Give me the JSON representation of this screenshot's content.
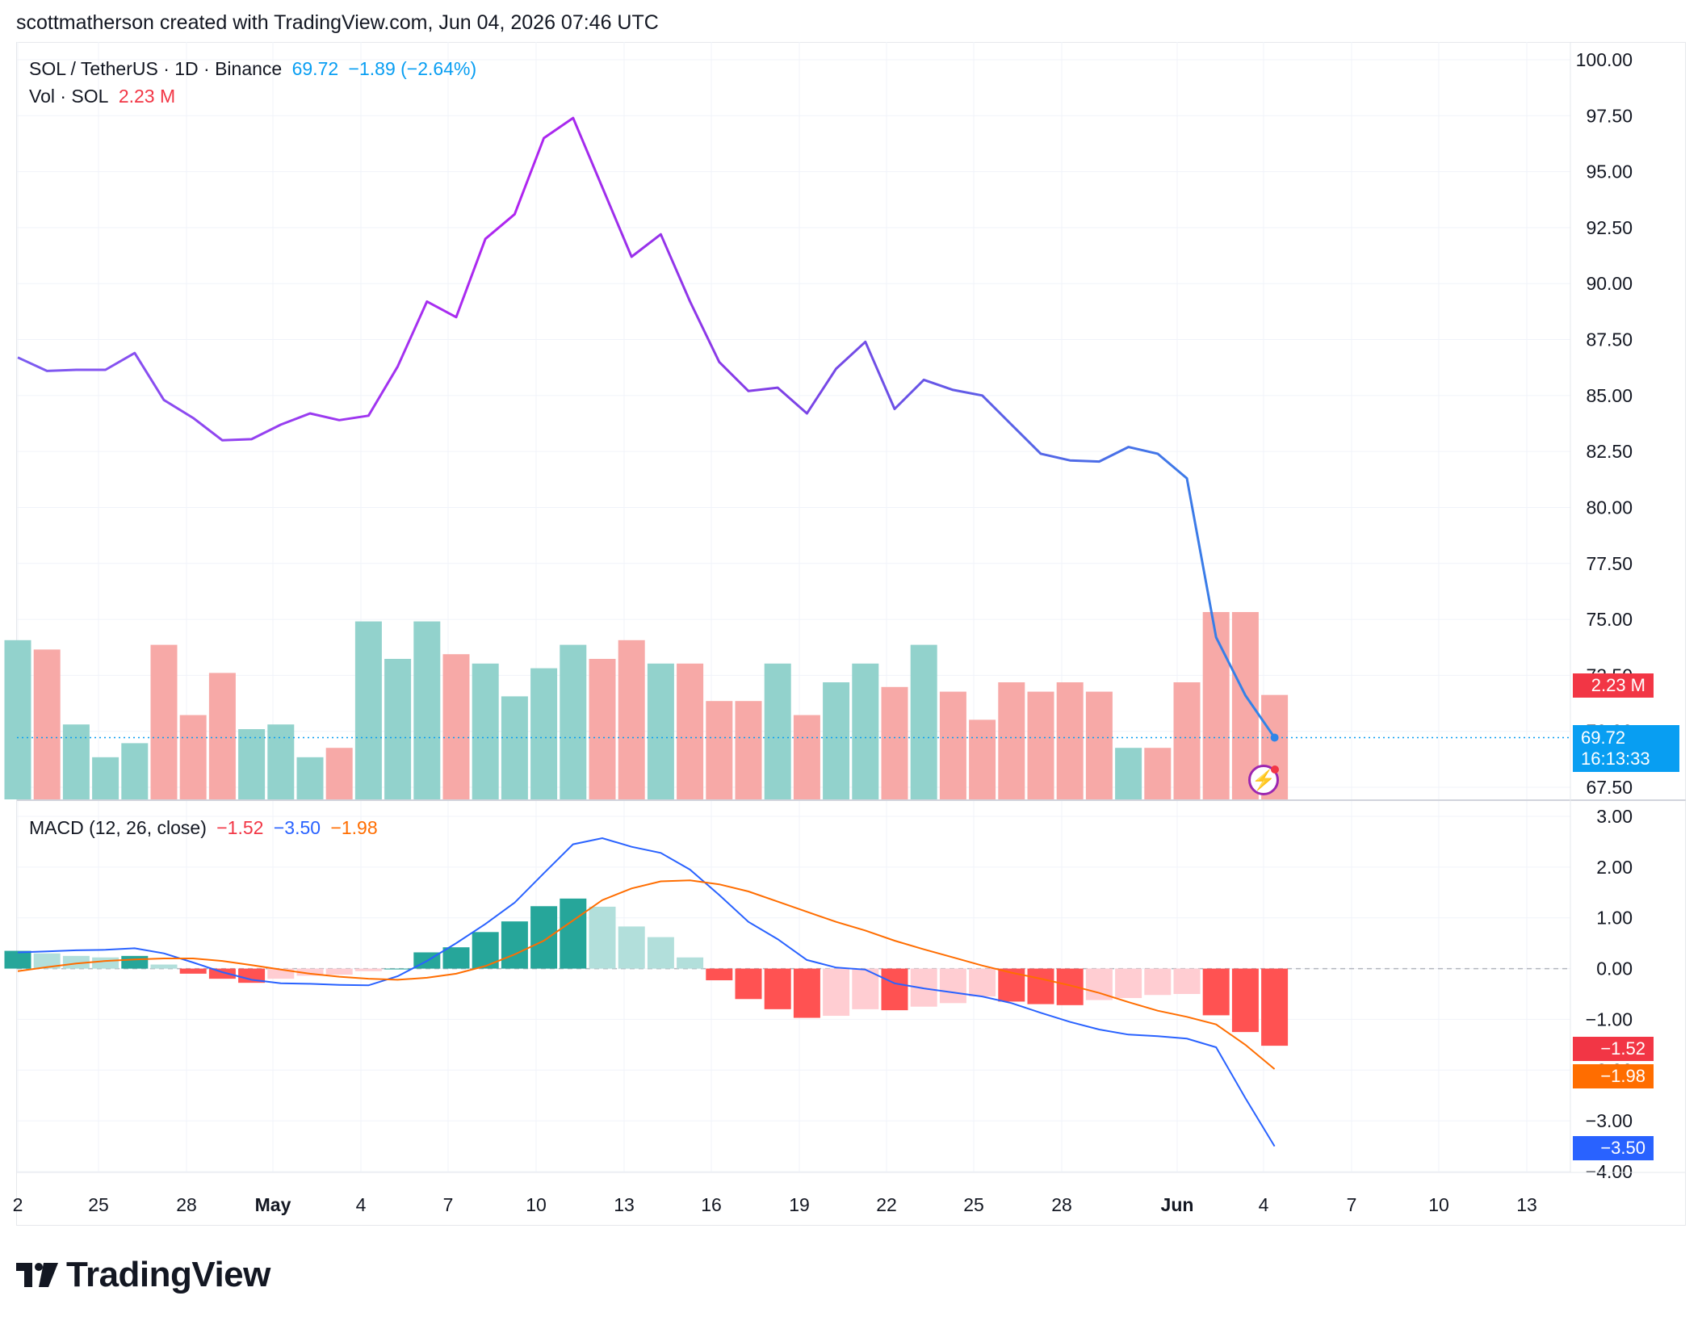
{
  "header": {
    "text": "scottmatherson created with TradingView.com, Jun 04, 2026 07:46 UTC"
  },
  "legend": {
    "symbol": "SOL / TetherUS · 1D · Binance",
    "price": "69.72",
    "change": "−1.89 (−2.64%)",
    "vol_label": "Vol · SOL",
    "vol_value": "2.23 M",
    "macd_label": "MACD (12, 26, close)",
    "macd_hist": "−1.52",
    "macd_line": "−3.50",
    "macd_signal": "−1.98"
  },
  "badges": {
    "volume": "2.23 M",
    "price": "69.72",
    "countdown": "16:13:33",
    "hist": "−1.52",
    "signal": "−1.98",
    "macd": "−3.50"
  },
  "logo": {
    "text": "TradingView"
  },
  "colors": {
    "up": "#26a69a",
    "down": "#f23645",
    "vol_up": "#92d2cc",
    "vol_down": "#f7a9a7",
    "hist_up_strong": "#26a69a",
    "hist_up_weak": "#b2dfdb",
    "hist_down_strong": "#ff5252",
    "hist_down_weak": "#ffcdd2",
    "macd_line": "#2962ff",
    "signal_line": "#ff6d00",
    "price_badge": "#0ea5e9"
  },
  "chart_data": [
    {
      "type": "line",
      "name": "price",
      "x": [
        "Apr 22",
        "Apr 23",
        "Apr 24",
        "Apr 25",
        "Apr 26",
        "Apr 27",
        "Apr 28",
        "Apr 29",
        "Apr 30",
        "May 1",
        "May 2",
        "May 3",
        "May 4",
        "May 5",
        "May 6",
        "May 7",
        "May 8",
        "May 9",
        "May 10",
        "May 11",
        "May 12",
        "May 13",
        "May 14",
        "May 15",
        "May 16",
        "May 17",
        "May 18",
        "May 19",
        "May 20",
        "May 21",
        "May 22",
        "May 23",
        "May 24",
        "May 25",
        "May 26",
        "May 27",
        "May 28",
        "May 29",
        "May 30",
        "May 31",
        "Jun 1",
        "Jun 2",
        "Jun 3",
        "Jun 4"
      ],
      "values": [
        86.7,
        86.1,
        86.15,
        86.15,
        86.9,
        84.8,
        84.0,
        83.0,
        83.05,
        83.7,
        84.2,
        83.9,
        84.1,
        86.3,
        89.2,
        88.5,
        92.0,
        93.1,
        96.5,
        97.4,
        94.3,
        91.2,
        92.2,
        89.2,
        86.5,
        85.2,
        85.35,
        84.2,
        86.2,
        87.4,
        84.4,
        85.7,
        85.25,
        85.0,
        83.7,
        82.4,
        82.1,
        82.05,
        82.7,
        82.4,
        81.3,
        74.2,
        71.61,
        69.72
      ],
      "ylim": [
        67.5,
        100
      ],
      "yticks": [
        "100.00",
        "97.50",
        "95.00",
        "92.50",
        "90.00",
        "87.50",
        "85.00",
        "82.50",
        "80.00",
        "77.50",
        "75.00",
        "72.50",
        "70.00",
        "67.50"
      ],
      "grid": true
    },
    {
      "type": "bar",
      "name": "volume",
      "values": [
        3.4,
        3.2,
        1.6,
        0.9,
        1.2,
        3.3,
        1.8,
        2.7,
        1.5,
        1.6,
        0.9,
        1.1,
        3.8,
        3.0,
        3.8,
        3.1,
        2.9,
        2.2,
        2.8,
        3.3,
        3.0,
        3.4,
        2.9,
        2.9,
        2.1,
        2.1,
        2.9,
        1.8,
        2.5,
        2.9,
        2.4,
        3.3,
        2.3,
        1.7,
        2.5,
        2.3,
        2.5,
        2.3,
        1.1,
        1.1,
        2.5,
        4.0,
        4.0,
        2.23
      ],
      "direction": [
        "up",
        "down",
        "up",
        "up",
        "up",
        "down",
        "down",
        "down",
        "up",
        "up",
        "up",
        "down",
        "up",
        "up",
        "up",
        "down",
        "up",
        "up",
        "up",
        "up",
        "down",
        "down",
        "up",
        "down",
        "down",
        "down",
        "up",
        "down",
        "up",
        "up",
        "down",
        "up",
        "down",
        "down",
        "down",
        "down",
        "down",
        "down",
        "up",
        "down",
        "down",
        "down",
        "down",
        "down"
      ]
    },
    {
      "type": "bar",
      "name": "macd-histogram",
      "values": [
        0.35,
        0.3,
        0.25,
        0.22,
        0.25,
        0.08,
        -0.1,
        -0.2,
        -0.28,
        -0.2,
        -0.14,
        -0.12,
        -0.05,
        0.0,
        0.32,
        0.42,
        0.72,
        0.93,
        1.23,
        1.38,
        1.22,
        0.83,
        0.62,
        0.22,
        -0.23,
        -0.6,
        -0.8,
        -0.97,
        -0.93,
        -0.8,
        -0.82,
        -0.75,
        -0.68,
        -0.55,
        -0.65,
        -0.7,
        -0.72,
        -0.62,
        -0.58,
        -0.52,
        -0.5,
        -0.92,
        -1.25,
        -1.52
      ],
      "ylim": [
        -4,
        3
      ],
      "yticks": [
        "3.00",
        "2.00",
        "1.00",
        "0.00",
        "−1.00",
        "−2.00",
        "−3.00",
        "−4.00"
      ]
    },
    {
      "type": "line",
      "name": "macd-line",
      "values": [
        0.32,
        0.34,
        0.36,
        0.37,
        0.4,
        0.3,
        0.12,
        -0.07,
        -0.22,
        -0.29,
        -0.3,
        -0.32,
        -0.33,
        -0.15,
        0.15,
        0.5,
        0.88,
        1.3,
        1.88,
        2.45,
        2.57,
        2.4,
        2.28,
        1.95,
        1.45,
        0.92,
        0.58,
        0.17,
        0.02,
        -0.02,
        -0.29,
        -0.39,
        -0.47,
        -0.55,
        -0.68,
        -0.87,
        -1.05,
        -1.2,
        -1.3,
        -1.33,
        -1.38,
        -1.55,
        -2.55,
        -3.5
      ]
    },
    {
      "type": "line",
      "name": "signal-line",
      "values": [
        -0.05,
        0.03,
        0.1,
        0.15,
        0.18,
        0.2,
        0.2,
        0.15,
        0.07,
        -0.02,
        -0.1,
        -0.16,
        -0.2,
        -0.22,
        -0.18,
        -0.1,
        0.05,
        0.28,
        0.55,
        0.95,
        1.35,
        1.58,
        1.72,
        1.74,
        1.66,
        1.52,
        1.32,
        1.12,
        0.92,
        0.75,
        0.55,
        0.38,
        0.22,
        0.06,
        -0.08,
        -0.2,
        -0.33,
        -0.48,
        -0.66,
        -0.83,
        -0.95,
        -1.1,
        -1.5,
        -1.98
      ]
    }
  ],
  "x_axis": {
    "labels": [
      {
        "text": "2",
        "major": false
      },
      {
        "text": "25",
        "major": false
      },
      {
        "text": "28",
        "major": false
      },
      {
        "text": "May",
        "major": true
      },
      {
        "text": "4",
        "major": false
      },
      {
        "text": "7",
        "major": false
      },
      {
        "text": "10",
        "major": false
      },
      {
        "text": "13",
        "major": false
      },
      {
        "text": "16",
        "major": false
      },
      {
        "text": "19",
        "major": false
      },
      {
        "text": "22",
        "major": false
      },
      {
        "text": "25",
        "major": false
      },
      {
        "text": "28",
        "major": false
      },
      {
        "text": "Jun",
        "major": true
      },
      {
        "text": "4",
        "major": false
      },
      {
        "text": "7",
        "major": false
      },
      {
        "text": "10",
        "major": false
      },
      {
        "text": "13",
        "major": false
      }
    ]
  }
}
